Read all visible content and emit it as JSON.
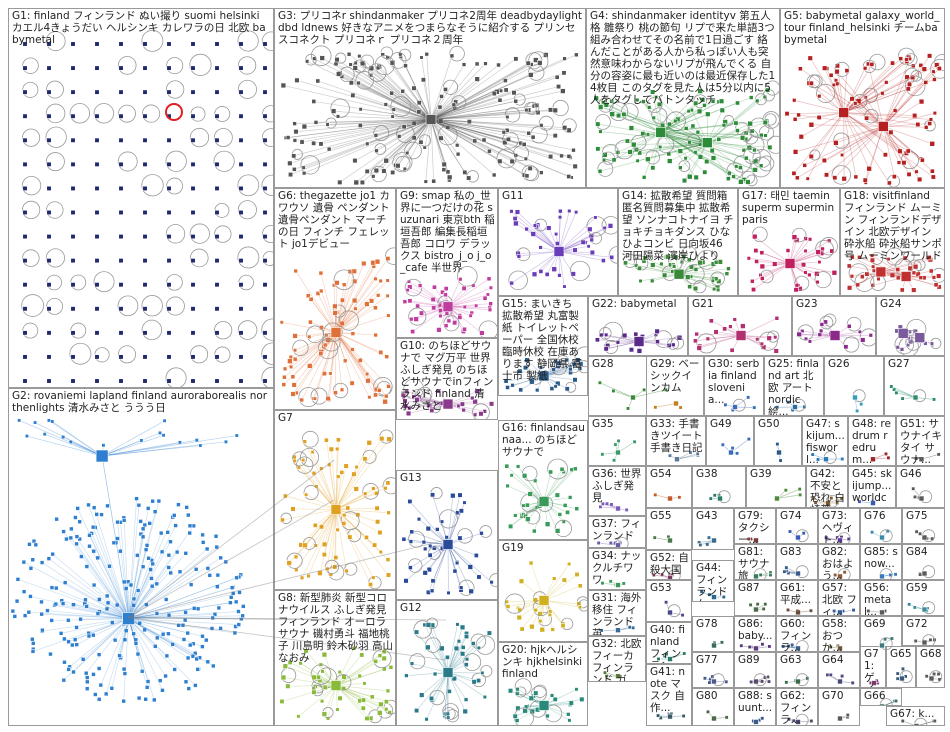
{
  "groups": [
    {
      "id": "G1",
      "label": "G1: finland フィンランド ぬい撮り suomi helsinki カエル4きょうだい ヘルシンキ カレワラの日 北欧 babymetal",
      "color": "#1f2a6b",
      "layout": "grid"
    },
    {
      "id": "G2",
      "label": "G2: rovaniemi lapland finland aurorabo­realis northenlights 清水みさと ううう日",
      "color": "#2f7fd0",
      "layout": "cluster"
    },
    {
      "id": "G3",
      "label": "G3: プリコネr shindanmaker プリコネ2周年 deadbydaylight dbd ldnews 好きなアニメをつまらなそうに紹介する プリンセスコネクト プリコネｒ プリコネ２周年",
      "color": "#555555",
      "layout": "hub"
    },
    {
      "id": "G4",
      "label": "G4: shindanmaker identityv 第五人格 雛祭り 桃の節句 リプで来た単語3つ組み合わせてその名前で1日過ごす 絡んだことがある人から私っぽい人も突然意味わからないリプが飛んでくる 自分の容姿に最も近いのは最近保存した14枚目 このタグを見た人は5分以内に5人をタグしてバトンタッチ",
      "color": "#2e8b3a",
      "layout": "scatter"
    },
    {
      "id": "G5",
      "label": "G5: babymetal galaxy_world_tour finland_helsinki チームbabymetal",
      "color": "#b52020",
      "layout": "scatter"
    },
    {
      "id": "G6",
      "label": "G6: thegazette jo1 カワウソ 遺骨 ペンダント 遺骨ペンダント マーチの日 フィンチ フェレット jo1デビュー",
      "color": "#e0703a",
      "layout": "hub"
    },
    {
      "id": "G9",
      "label": "G9: smap 私の_世界に一つだけの花 suzunari 東京bth 稲垣吾郎 編集長稲垣吾郎 コロワ デラックス bistro_j_o j_o_cafe 半世界",
      "color": "#c03da0",
      "layout": "hub"
    },
    {
      "id": "G11",
      "label": "G11",
      "color": "#6a3db8",
      "layout": "hub"
    },
    {
      "id": "G14",
      "label": "G14: 拡散希望 質問箱 匿名質問募集中 拡散希望 ソンナコトナイヨ チョキチョキダンス ひなひよコンビ 日向坂46 河田陽菜 濱岸ひより",
      "color": "#3a8a3a",
      "layout": "hub"
    },
    {
      "id": "G17",
      "label": "G17: 태민 taemin superm superminparis",
      "color": "#c02060",
      "layout": "hub"
    },
    {
      "id": "G18",
      "label": "G18: visitfinland フィンランド ムーミン フィンランドデザイン 北欧デザイン 砕氷船 砕氷船サンポ号 ムーミンワールド",
      "color": "#c03030",
      "layout": "scatter"
    },
    {
      "id": "G7",
      "label": "G7",
      "color": "#e0a020",
      "layout": "hub"
    },
    {
      "id": "G10",
      "label": "G10: のちほどサウナで マグ万平 世界ふしぎ発見 のちほどサウナでinフィンランド finland 清水みさと",
      "color": "#8a3a8a",
      "layout": "hub"
    },
    {
      "id": "G15",
      "label": "G15: まいきち 拡散希望 丸富製紙 トイレットペーパー 全国休校 臨時休校 在庫あります 静岡県 富士市 製紙",
      "color": "#2a5a8a",
      "layout": "hub"
    },
    {
      "id": "G22",
      "label": "G22: babymetal",
      "color": "#5a2a8a",
      "layout": "hub"
    },
    {
      "id": "G21",
      "label": "G21",
      "color": "#b03070",
      "layout": "hub"
    },
    {
      "id": "G23",
      "label": "G23",
      "color": "#8a2a8a",
      "layout": "hub"
    },
    {
      "id": "G24",
      "label": "G24",
      "color": "#7a5a9a",
      "layout": "scatter"
    },
    {
      "id": "G13",
      "label": "G13",
      "color": "#2a4a9a",
      "layout": "hub"
    },
    {
      "id": "G16",
      "label": "G16: finlandsaunaa... のちほどサウナで",
      "color": "#3a9a5a",
      "layout": "hub"
    },
    {
      "id": "G28",
      "label": "G28",
      "color": "#3a8a3a",
      "layout": "small"
    },
    {
      "id": "G29",
      "label": "G29: ベーシックインカム",
      "color": "#c08020",
      "layout": "small"
    },
    {
      "id": "G30",
      "label": "G30: serbia finland slovenia...",
      "color": "#3a6aba",
      "layout": "small"
    },
    {
      "id": "G25",
      "label": "G25: finland art 北欧 アート nordic 絵...",
      "color": "#2a6a9a",
      "layout": "small"
    },
    {
      "id": "G26",
      "label": "G26",
      "color": "#3a9aba",
      "layout": "small"
    },
    {
      "id": "G27",
      "label": "G27",
      "color": "#2a8a6a",
      "layout": "small"
    },
    {
      "id": "G8",
      "label": "G8: 新型肺炎 新型コロナウイルス ふしぎ発見 フィンランド オーロラサウナ 磯村勇斗 福地桃子 川島明 鈴木砂羽 高山なおみ",
      "color": "#8aba3a",
      "layout": "hub"
    },
    {
      "id": "G12",
      "label": "G12",
      "color": "#2a7a8a",
      "layout": "hub"
    },
    {
      "id": "G19",
      "label": "G19",
      "color": "#d0b020",
      "layout": "hub"
    },
    {
      "id": "G20",
      "label": "G20: hjkヘルシンキ hjkhelsinki finland",
      "color": "#2a8a7a",
      "layout": "hub"
    },
    {
      "id": "G35",
      "label": "G35",
      "color": "#3a9a6a",
      "layout": "small"
    },
    {
      "id": "G33",
      "label": "G33: 手書きツイート 手書き日記",
      "color": "#5a7a9a",
      "layout": "small"
    },
    {
      "id": "G49",
      "label": "G49",
      "color": "#3a6aba",
      "layout": "small"
    },
    {
      "id": "G50",
      "label": "G50",
      "color": "#2a5a8a",
      "layout": "small"
    },
    {
      "id": "G47",
      "label": "G47: skijum... fisworl...",
      "color": "#2a7aba",
      "layout": "small"
    },
    {
      "id": "G48",
      "label": "G48: redrum redrum...",
      "color": "#9a2a2a",
      "layout": "small"
    },
    {
      "id": "G51",
      "label": "G51: サウナイキタイ サウナ...",
      "color": "#5a5a5a",
      "layout": "small"
    },
    {
      "id": "G36",
      "label": "G36: 世界ふしぎ発見",
      "color": "#7a5aba",
      "layout": "small"
    },
    {
      "id": "G54",
      "label": "G54",
      "color": "#c05a2a",
      "layout": "small"
    },
    {
      "id": "G38",
      "label": "G38",
      "color": "#2a7a6a",
      "layout": "small"
    },
    {
      "id": "G39",
      "label": "G39",
      "color": "#4a8a3a",
      "layout": "small"
    },
    {
      "id": "G42",
      "label": "G42: 不安と恐れ 白崎茶...",
      "color": "#7a5a2a",
      "layout": "small"
    },
    {
      "id": "G45",
      "label": "G45: skijump... worldcu...",
      "color": "#3a5aba",
      "layout": "small"
    },
    {
      "id": "G46",
      "label": "G46",
      "color": "#5a5a5a",
      "layout": "small"
    },
    {
      "id": "G37",
      "label": "G37: フィンランド",
      "color": "#6a5aaa",
      "layout": "small"
    },
    {
      "id": "G55",
      "label": "G55",
      "color": "#4a7a4a",
      "layout": "small"
    },
    {
      "id": "G43",
      "label": "G43",
      "color": "#3a6a8a",
      "layout": "small"
    },
    {
      "id": "G79",
      "label": "G79: タクシー...",
      "color": "#7a3a3a",
      "layout": "small"
    },
    {
      "id": "G74",
      "label": "G74",
      "color": "#3a5aba",
      "layout": "small"
    },
    {
      "id": "G73",
      "label": "G73: ヘヴィト...",
      "color": "#5a3a8a",
      "layout": "small"
    },
    {
      "id": "G76",
      "label": "G76",
      "color": "#3a8aaa",
      "layout": "small"
    },
    {
      "id": "G75",
      "label": "G75",
      "color": "#5a5a5a",
      "layout": "small"
    },
    {
      "id": "G52",
      "label": "G52: 自殺大国",
      "color": "#7a3a5a",
      "layout": "small"
    },
    {
      "id": "G81",
      "label": "G81: サウナ旅",
      "color": "#3a7a5a",
      "layout": "small"
    },
    {
      "id": "G83",
      "label": "G83",
      "color": "#3a5a8a",
      "layout": "small"
    },
    {
      "id": "G82",
      "label": "G82: おはよう...",
      "color": "#8a5a3a",
      "layout": "small"
    },
    {
      "id": "G85",
      "label": "G85: snow...",
      "color": "#3a7aba",
      "layout": "small"
    },
    {
      "id": "G84",
      "label": "G84",
      "color": "#5a5a5a",
      "layout": "small"
    },
    {
      "id": "G34",
      "label": "G34: ナックルチワワ",
      "color": "#3a9a5a",
      "layout": "small"
    },
    {
      "id": "G44",
      "label": "G44: フィンランド ム...",
      "color": "#2a6a8a",
      "layout": "small"
    },
    {
      "id": "G87",
      "label": "G87",
      "color": "#4a6a4a",
      "layout": "small"
    },
    {
      "id": "G61",
      "label": "G61: 平成...",
      "color": "#6a4a3a",
      "layout": "small"
    },
    {
      "id": "G57",
      "label": "G57: 北欧 フィ...",
      "color": "#3a5a9a",
      "layout": "small"
    },
    {
      "id": "G56",
      "label": "G56: metal...",
      "color": "#5a5a5a",
      "layout": "small"
    },
    {
      "id": "G59",
      "label": "G59",
      "color": "#3a8a9a",
      "layout": "small"
    },
    {
      "id": "G53",
      "label": "G53",
      "color": "#4a4a8a",
      "layout": "small"
    },
    {
      "id": "G78",
      "label": "G78",
      "color": "#3a6a5a",
      "layout": "small"
    },
    {
      "id": "G86",
      "label": "G86: baby...",
      "color": "#5a3a7a",
      "layout": "small"
    },
    {
      "id": "G60",
      "label": "G60: フィンラ...",
      "color": "#3a5a8a",
      "layout": "small"
    },
    {
      "id": "G58",
      "label": "G58: おつか...",
      "color": "#6a5a3a",
      "layout": "small"
    },
    {
      "id": "G69",
      "label": "G69",
      "color": "#3a7a7a",
      "layout": "small"
    },
    {
      "id": "G72",
      "label": "G72",
      "color": "#5a5a5a",
      "layout": "small"
    },
    {
      "id": "G31",
      "label": "G31: 海外移住 フィンランド 英...",
      "color": "#3a6a9a",
      "layout": "small"
    },
    {
      "id": "G40",
      "label": "G40: finland フィンラン...",
      "color": "#2a7a6a",
      "layout": "small"
    },
    {
      "id": "G77",
      "label": "G77",
      "color": "#4a5a8a",
      "layout": "small"
    },
    {
      "id": "G89",
      "label": "G89",
      "color": "#5a4a6a",
      "layout": "small"
    },
    {
      "id": "G63",
      "label": "G63",
      "color": "#3a6a4a",
      "layout": "small"
    },
    {
      "id": "G64",
      "label": "G64",
      "color": "#4a4a7a",
      "layout": "small"
    },
    {
      "id": "G71",
      "label": "G71: ゲイ...",
      "color": "#7a3a6a",
      "layout": "small"
    },
    {
      "id": "G65",
      "label": "G65",
      "color": "#3a5a7a",
      "layout": "small"
    },
    {
      "id": "G68",
      "label": "G68",
      "color": "#5a5a5a",
      "layout": "small"
    },
    {
      "id": "G32",
      "label": "G32: 北欧 フィーカ フィンランド ガ...",
      "color": "#5a7a3a",
      "layout": "small"
    },
    {
      "id": "G41",
      "label": "G41: note マスク 自 作...",
      "color": "#3a5a6a",
      "layout": "small"
    },
    {
      "id": "G80",
      "label": "G80",
      "color": "#4a6a4a",
      "layout": "small"
    },
    {
      "id": "G88",
      "label": "G88: suunt...",
      "color": "#3a5a8a",
      "layout": "small"
    },
    {
      "id": "G62",
      "label": "G62: フィンラ...",
      "color": "#4a4a6a",
      "layout": "small"
    },
    {
      "id": "G70",
      "label": "G70",
      "color": "#5a5a5a",
      "layout": "small"
    },
    {
      "id": "G66",
      "label": "G66",
      "color": "#3a6a6a",
      "layout": "small"
    },
    {
      "id": "G67",
      "label": "G67: k...",
      "color": "#5a5a5a",
      "layout": "small"
    }
  ]
}
